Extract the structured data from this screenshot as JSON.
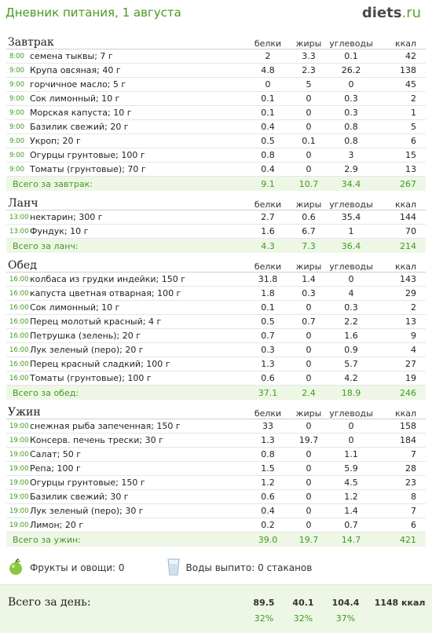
{
  "header": {
    "title": "Дневник питания, 1 августа",
    "logo_brand": "diets",
    "logo_dot": ".",
    "logo_tld": "ru"
  },
  "columns": {
    "protein": "белки",
    "fat": "жиры",
    "carbs": "углеводы",
    "kcal": "ккал"
  },
  "meals": [
    {
      "name": "Завтрак",
      "items": [
        {
          "time": "8:00",
          "food": "семена тыквы; 7 г",
          "protein": "2",
          "fat": "3.3",
          "carbs": "0.1",
          "kcal": "42"
        },
        {
          "time": "9:00",
          "food": "Крупа овсяная; 40 г",
          "protein": "4.8",
          "fat": "2.3",
          "carbs": "26.2",
          "kcal": "138"
        },
        {
          "time": "9:00",
          "food": "горчичное масло; 5 г",
          "protein": "0",
          "fat": "5",
          "carbs": "0",
          "kcal": "45"
        },
        {
          "time": "9:00",
          "food": "Сок лимонный; 10 г",
          "protein": "0.1",
          "fat": "0",
          "carbs": "0.3",
          "kcal": "2"
        },
        {
          "time": "9:00",
          "food": "Морская капуста; 10 г",
          "protein": "0.1",
          "fat": "0",
          "carbs": "0.3",
          "kcal": "1"
        },
        {
          "time": "9:00",
          "food": "Базилик свежий; 20 г",
          "protein": "0.4",
          "fat": "0",
          "carbs": "0.8",
          "kcal": "5"
        },
        {
          "time": "9:00",
          "food": "Укроп; 20 г",
          "protein": "0.5",
          "fat": "0.1",
          "carbs": "0.8",
          "kcal": "6"
        },
        {
          "time": "9:00",
          "food": "Огурцы грунтовые; 100 г",
          "protein": "0.8",
          "fat": "0",
          "carbs": "3",
          "kcal": "15"
        },
        {
          "time": "9:00",
          "food": "Томаты (грунтовые); 70 г",
          "protein": "0.4",
          "fat": "0",
          "carbs": "2.9",
          "kcal": "13"
        }
      ],
      "total": {
        "label": "Всего за завтрак:",
        "protein": "9.1",
        "fat": "10.7",
        "carbs": "34.4",
        "kcal": "267"
      }
    },
    {
      "name": "Ланч",
      "items": [
        {
          "time": "13:00",
          "food": "нектарин; 300 г",
          "protein": "2.7",
          "fat": "0.6",
          "carbs": "35.4",
          "kcal": "144"
        },
        {
          "time": "13:00",
          "food": "Фундук; 10 г",
          "protein": "1.6",
          "fat": "6.7",
          "carbs": "1",
          "kcal": "70"
        }
      ],
      "total": {
        "label": "Всего за ланч:",
        "protein": "4.3",
        "fat": "7.3",
        "carbs": "36.4",
        "kcal": "214"
      }
    },
    {
      "name": "Обед",
      "items": [
        {
          "time": "16:00",
          "food": "колбаса из грудки индейки; 150 г",
          "protein": "31.8",
          "fat": "1.4",
          "carbs": "0",
          "kcal": "143"
        },
        {
          "time": "16:00",
          "food": "капуста цветная отварная; 100 г",
          "protein": "1.8",
          "fat": "0.3",
          "carbs": "4",
          "kcal": "29"
        },
        {
          "time": "16:00",
          "food": "Сок лимонный; 10 г",
          "protein": "0.1",
          "fat": "0",
          "carbs": "0.3",
          "kcal": "2"
        },
        {
          "time": "16:00",
          "food": "Перец молотый красный; 4 г",
          "protein": "0.5",
          "fat": "0.7",
          "carbs": "2.2",
          "kcal": "13"
        },
        {
          "time": "16:00",
          "food": "Петрушка (зелень); 20 г",
          "protein": "0.7",
          "fat": "0",
          "carbs": "1.6",
          "kcal": "9"
        },
        {
          "time": "16:00",
          "food": "Лук зеленый (перо); 20 г",
          "protein": "0.3",
          "fat": "0",
          "carbs": "0.9",
          "kcal": "4"
        },
        {
          "time": "16:00",
          "food": "Перец красный сладкий; 100 г",
          "protein": "1.3",
          "fat": "0",
          "carbs": "5.7",
          "kcal": "27"
        },
        {
          "time": "16:00",
          "food": "Томаты (грунтовые); 100 г",
          "protein": "0.6",
          "fat": "0",
          "carbs": "4.2",
          "kcal": "19"
        }
      ],
      "total": {
        "label": "Всего за обед:",
        "protein": "37.1",
        "fat": "2.4",
        "carbs": "18.9",
        "kcal": "246"
      }
    },
    {
      "name": "Ужин",
      "items": [
        {
          "time": "19:00",
          "food": "снежная рыба запеченная; 150 г",
          "protein": "33",
          "fat": "0",
          "carbs": "0",
          "kcal": "158"
        },
        {
          "time": "19:00",
          "food": "Консерв. печень трески; 30 г",
          "protein": "1.3",
          "fat": "19.7",
          "carbs": "0",
          "kcal": "184"
        },
        {
          "time": "19:00",
          "food": "Салат; 50 г",
          "protein": "0.8",
          "fat": "0",
          "carbs": "1.1",
          "kcal": "7"
        },
        {
          "time": "19:00",
          "food": "Репа; 100 г",
          "protein": "1.5",
          "fat": "0",
          "carbs": "5.9",
          "kcal": "28"
        },
        {
          "time": "19:00",
          "food": "Огурцы грунтовые; 150 г",
          "protein": "1.2",
          "fat": "0",
          "carbs": "4.5",
          "kcal": "23"
        },
        {
          "time": "19:00",
          "food": "Базилик свежий; 30 г",
          "protein": "0.6",
          "fat": "0",
          "carbs": "1.2",
          "kcal": "8"
        },
        {
          "time": "19:00",
          "food": "Лук зеленый (перо); 30 г",
          "protein": "0.4",
          "fat": "0",
          "carbs": "1.4",
          "kcal": "7"
        },
        {
          "time": "19:00",
          "food": "Лимон; 20 г",
          "protein": "0.2",
          "fat": "0",
          "carbs": "0.7",
          "kcal": "6"
        }
      ],
      "total": {
        "label": "Всего за ужин:",
        "protein": "39.0",
        "fat": "19.7",
        "carbs": "14.7",
        "kcal": "421"
      }
    }
  ],
  "footer": {
    "fruits_label": "Фрукты и овощи: 0",
    "water_label": "Воды выпито: 0 стаканов",
    "fruit_icon": "apple-icon",
    "water_icon": "glass-icon"
  },
  "day_total": {
    "label": "Всего за день:",
    "protein": "89.5",
    "fat": "40.1",
    "carbs": "104.4",
    "kcal": "1148 ккал",
    "protein_pct": "32%",
    "fat_pct": "32%",
    "carbs_pct": "37%"
  },
  "colors": {
    "accent": "#3f9a1f",
    "total_bg": "#eef7e6"
  }
}
